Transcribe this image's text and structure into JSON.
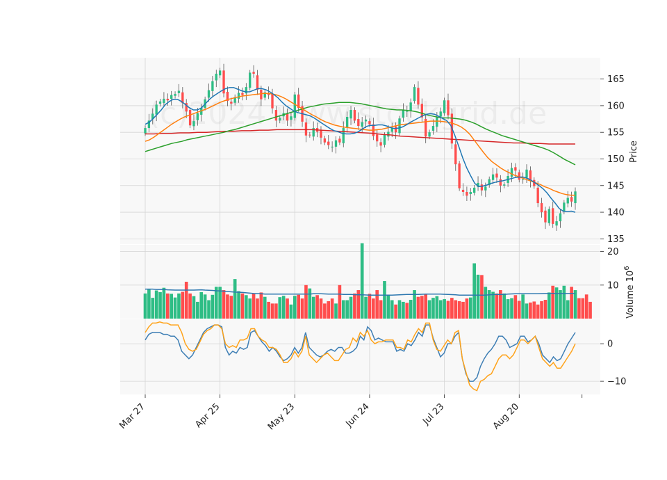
{
  "watermark": "(c)2024 www.stockgrid.de",
  "chart_data": [
    {
      "type": "candlestick",
      "panel": "price",
      "ylabel": "Price",
      "ylim": [
        134,
        169
      ],
      "yticks": [
        135,
        140,
        145,
        150,
        155,
        160,
        165
      ],
      "xlabels": [
        "Mar 27",
        "Apr 25",
        "May 23",
        "Jun 24",
        "Jul 23",
        "Aug 20"
      ],
      "xlabel_index": [
        0,
        20,
        40,
        60,
        80,
        100
      ],
      "up_color": "#2ebd85",
      "down_color": "#ff4d4d",
      "close": [
        155.8,
        157.2,
        158.5,
        160.2,
        160.8,
        161.3,
        161.0,
        162.0,
        162.2,
        162.8,
        160.5,
        158.9,
        156.3,
        157.1,
        158.6,
        159.6,
        161.2,
        162.9,
        164.6,
        166.0,
        166.6,
        162.3,
        160.9,
        160.4,
        161.6,
        162.4,
        162.0,
        163.5,
        166.2,
        166.0,
        163.0,
        161.2,
        162.5,
        162.0,
        159.5,
        157.2,
        157.7,
        158.6,
        157.2,
        158.0,
        162.1,
        159.6,
        157.0,
        154.4,
        154.5,
        155.8,
        155.1,
        154.0,
        153.1,
        152.6,
        152.3,
        153.5,
        153.1,
        155.8,
        157.9,
        159.2,
        157.2,
        156.2,
        156.9,
        157.4,
        156.5,
        154.3,
        153.3,
        152.5,
        154.5,
        155.1,
        155.8,
        155.0,
        157.6,
        159.2,
        159.0,
        160.6,
        163.5,
        160.2,
        157.8,
        154.2,
        155.0,
        156.2,
        157.8,
        158.9,
        161.0,
        158.2,
        152.9,
        149.0,
        144.5,
        143.8,
        143.1,
        143.8,
        144.6,
        145.5,
        144.1,
        144.8,
        146.2,
        147.1,
        146.5,
        145.0,
        145.2,
        146.8,
        148.3,
        147.8,
        146.1,
        146.2,
        148.0,
        145.9,
        144.9,
        141.7,
        140.0,
        138.1,
        140.6,
        137.8,
        138.3,
        139.8,
        141.8,
        142.7,
        142.0,
        143.9
      ],
      "ma_short": [
        156.5,
        156.9,
        157.6,
        158.4,
        159.2,
        160.2,
        160.8,
        161.2,
        161.2,
        160.8,
        160.2,
        159.6,
        159.2,
        159.2,
        159.6,
        160.4,
        161.2,
        161.8,
        162.3,
        162.8,
        163.2,
        163.4,
        163.4,
        163.1,
        162.8,
        162.6,
        162.6,
        162.9,
        163.2,
        163.2,
        163.0,
        162.6,
        162.1,
        161.5,
        160.7,
        160.0,
        159.5,
        159.0,
        158.7,
        158.5,
        158.3,
        158.1,
        157.7,
        157.2,
        156.7,
        156.2,
        155.7,
        155.3,
        155.1,
        154.8,
        154.7,
        154.7,
        154.8,
        155.1,
        155.6,
        156.1,
        156.3,
        156.3,
        156.4,
        156.4,
        156.2,
        155.9,
        155.7,
        155.8,
        156.0,
        156.4,
        156.9,
        157.3,
        157.7,
        158.1,
        158.4,
        158.5,
        158.4,
        158.0,
        157.6,
        157.2,
        156.3,
        154.5,
        152.4,
        150.2,
        148.3,
        146.8,
        145.4,
        144.8,
        144.9,
        145.1,
        145.4,
        145.6,
        145.8,
        145.9,
        146.1,
        146.3,
        146.5,
        146.6,
        146.6,
        146.4,
        146.0,
        145.5,
        145.0,
        144.4,
        143.6,
        142.6,
        141.7,
        140.7,
        140.2,
        140.1,
        140.2,
        140.0
      ],
      "ma_mid": [
        153.3,
        153.6,
        154.1,
        154.7,
        155.3,
        155.9,
        156.5,
        157.0,
        157.5,
        157.9,
        158.2,
        158.5,
        158.8,
        159.1,
        159.4,
        159.8,
        160.2,
        160.6,
        160.9,
        161.2,
        161.4,
        161.6,
        161.8,
        161.9,
        162.0,
        162.1,
        162.2,
        162.3,
        162.3,
        162.2,
        162.0,
        161.7,
        161.3,
        160.8,
        160.3,
        159.8,
        159.3,
        158.8,
        158.3,
        157.9,
        157.4,
        157.0,
        156.7,
        156.4,
        156.2,
        156.0,
        155.9,
        155.8,
        155.7,
        155.6,
        155.5,
        155.4,
        155.4,
        155.5,
        155.6,
        155.8,
        156.0,
        156.2,
        156.4,
        156.5,
        156.6,
        156.7,
        156.8,
        156.9,
        157.0,
        157.1,
        157.1,
        157.1,
        157.0,
        156.9,
        156.7,
        156.4,
        156.0,
        155.4,
        154.6,
        153.5,
        152.4,
        151.3,
        150.3,
        149.5,
        148.9,
        148.3,
        147.8,
        147.4,
        147.0,
        146.7,
        146.4,
        146.1,
        145.8,
        145.5,
        145.2,
        144.8,
        144.5,
        144.1,
        143.8,
        143.5,
        143.3,
        143.2,
        143.2
      ],
      "ma_long": [
        151.4,
        151.7,
        152.0,
        152.3,
        152.6,
        152.9,
        153.1,
        153.3,
        153.6,
        153.8,
        154.0,
        154.2,
        154.4,
        154.6,
        154.8,
        155.0,
        155.3,
        155.5,
        155.8,
        156.1,
        156.4,
        156.7,
        157.0,
        157.3,
        157.6,
        157.9,
        158.2,
        158.5,
        158.8,
        159.1,
        159.4,
        159.7,
        159.9,
        160.1,
        160.3,
        160.4,
        160.5,
        160.6,
        160.6,
        160.6,
        160.5,
        160.4,
        160.2,
        160.0,
        159.8,
        159.6,
        159.4,
        159.3,
        159.2,
        159.2,
        159.1,
        159.0,
        158.8,
        158.5,
        158.2,
        158.0,
        157.8,
        157.7,
        157.7,
        157.6,
        157.5,
        157.3,
        157.0,
        156.6,
        156.1,
        155.6,
        155.2,
        154.8,
        154.4,
        154.1,
        153.8,
        153.5,
        153.2,
        152.9,
        152.6,
        152.3,
        152.0,
        151.6,
        151.1,
        150.5,
        149.9,
        149.4,
        148.9
      ],
      "ma_long_start": 0,
      "ma_200": [
        154.7,
        154.7,
        154.8,
        154.8,
        154.9,
        154.9,
        155.0,
        155.0,
        155.1,
        155.2,
        155.2,
        155.3,
        155.3,
        155.4,
        155.4,
        155.5,
        155.5,
        155.5,
        155.5,
        155.5,
        155.4,
        155.3,
        155.2,
        155.1,
        155.0,
        154.9,
        154.8,
        154.6,
        154.5,
        154.3,
        154.2,
        154.1,
        154.0,
        153.9,
        153.8,
        153.7,
        153.6,
        153.5,
        153.4,
        153.3,
        153.2,
        153.1,
        153.0,
        153.0,
        152.9,
        152.9,
        152.8,
        152.8,
        152.8,
        152.8
      ]
    },
    {
      "type": "bar",
      "panel": "volume",
      "ylabel": "Volume  10^6",
      "ylabel_exp": "6",
      "ylim": [
        0,
        22
      ],
      "yticks": [
        10,
        20
      ],
      "values": [
        7.5,
        8.7,
        6.2,
        8.4,
        7.9,
        9.2,
        7.5,
        7.4,
        6.3,
        7.5,
        8.0,
        11.0,
        7.5,
        6.7,
        5.0,
        7.9,
        7.2,
        5.5,
        7.1,
        9.5,
        9.5,
        8.5,
        7.2,
        6.8,
        11.8,
        8.2,
        7.5,
        7.0,
        6.0,
        7.4,
        6.0,
        7.8,
        6.5,
        5.0,
        4.5,
        4.5,
        6.4,
        6.8,
        6.0,
        4.2,
        6.8,
        7.1,
        6.0,
        10.0,
        9.0,
        6.5,
        7.0,
        6.0,
        4.5,
        5.2,
        6.0,
        4.5,
        10.0,
        5.5,
        5.5,
        6.5,
        7.5,
        8.5,
        22.5,
        6.5,
        7.4,
        6.0,
        8.5,
        5.5,
        11.2,
        7.0,
        5.5,
        4.2,
        5.5,
        5.0,
        4.7,
        5.6,
        8.5,
        6.5,
        6.8,
        7.2,
        5.5,
        6.2,
        6.7,
        5.5,
        5.8,
        5.3,
        6.2,
        5.5,
        5.2,
        5.0,
        6.0,
        6.3,
        16.5,
        13.1,
        13.0,
        9.5,
        8.5,
        8.0,
        7.5,
        8.5,
        7.5,
        5.8,
        6.1,
        7.0,
        5.3,
        7.2,
        4.5,
        4.8,
        5.1,
        4.2,
        5.2,
        5.6,
        7.8,
        9.8,
        9.3,
        8.5,
        9.8,
        5.5,
        9.5,
        8.5,
        6.1,
        6.1,
        7.2,
        5.0
      ],
      "up_color": "#2ebd85",
      "down_color": "#ff4d4d",
      "avg": [
        8.8,
        8.8,
        8.7,
        8.7,
        8.6,
        8.5,
        8.5,
        8.5,
        8.5,
        8.6,
        8.5,
        8.4,
        8.3,
        8.2,
        8.0,
        7.9,
        7.8,
        7.6,
        7.5,
        7.4,
        7.3,
        7.3,
        7.3,
        7.3,
        7.3,
        7.3,
        7.3,
        7.3,
        7.4,
        7.4,
        7.3,
        7.3,
        7.3,
        7.2,
        7.2,
        7.1,
        7.1,
        7.0,
        7.0,
        7.0,
        7.0,
        7.0,
        7.1,
        7.2,
        7.2,
        7.2,
        7.3,
        7.3,
        7.3,
        7.3,
        7.2,
        7.1,
        7.0,
        7.0,
        7.0,
        7.0,
        7.0,
        7.1,
        7.2,
        7.2,
        7.3,
        7.4,
        7.4,
        7.4,
        7.4,
        7.4,
        7.5,
        7.5,
        7.5,
        7.5,
        7.5,
        7.5
      ]
    },
    {
      "type": "line",
      "panel": "oscillator",
      "ylim": [
        -13.5,
        6.5
      ],
      "yticks": [
        -10,
        0
      ],
      "ytick_labels": [
        "−10",
        "0"
      ],
      "series": [
        {
          "color": "#3f7fb5",
          "values": [
            1,
            2.5,
            3,
            3,
            3,
            2.5,
            2.5,
            2,
            2,
            1,
            -2,
            -3,
            -4,
            -3,
            -1,
            1,
            3,
            4,
            4.5,
            5,
            5,
            4.5,
            -1,
            -3,
            -2,
            -2.5,
            -1,
            -1.5,
            -1,
            3,
            3.5,
            2,
            0.5,
            -0.5,
            -2,
            -1,
            -2,
            -3.5,
            -4.5,
            -4,
            -3,
            -1,
            -2.5,
            -1,
            3,
            -1,
            -2,
            -3,
            -3.5,
            -3,
            -2,
            -1.5,
            -2,
            -1,
            -1,
            -2.5,
            -2.5,
            -2,
            -1,
            2,
            1,
            4.5,
            3.5,
            1,
            1.5,
            1,
            0.5,
            0.5,
            0.5,
            -2,
            -1.5,
            -2,
            0,
            -0.5,
            1,
            3,
            2,
            5,
            5,
            1.5,
            -1,
            -3.5,
            -2.5,
            0,
            0,
            2,
            3,
            -4,
            -8,
            -10,
            -10,
            -9,
            -6,
            -4,
            -2.5,
            -1.5,
            0,
            2,
            2,
            1,
            -1,
            -0.5,
            0,
            2,
            2,
            0.5,
            1,
            2,
            0,
            -3,
            -4,
            -5,
            -3.5,
            -4.5,
            -4,
            -2,
            0,
            1.5,
            3
          ]
        },
        {
          "color": "#ffa31a",
          "values": [
            3,
            4.5,
            5.5,
            5.5,
            5.8,
            5.5,
            5.5,
            5,
            5,
            5,
            3,
            0,
            -1.5,
            -2,
            -1.5,
            0.5,
            2.5,
            3.5,
            4,
            5,
            5,
            4,
            0,
            -1,
            -0.5,
            -1,
            1,
            1,
            1.5,
            4,
            4,
            2,
            1,
            0.5,
            -1,
            -1,
            -1.5,
            -3,
            -5,
            -5,
            -4,
            -2,
            -3.5,
            -2,
            2,
            -3,
            -4,
            -5,
            -4,
            -3,
            -2.5,
            -3.5,
            -4.5,
            -4.5,
            -3,
            -1.5,
            -1,
            1.5,
            0.5,
            3,
            2,
            3.5,
            1,
            0,
            0.5,
            0.5,
            1,
            1,
            1,
            -1,
            -1,
            -1.5,
            1,
            0.5,
            2.5,
            4,
            3,
            5.5,
            5.5,
            1,
            -1.5,
            -2,
            -0.5,
            1,
            0,
            3,
            3.5,
            -4,
            -7.5,
            -11,
            -12,
            -12.5,
            -10,
            -9.5,
            -8.5,
            -8,
            -6,
            -4,
            -3,
            -3,
            -4,
            -3,
            -1,
            1,
            1,
            0,
            1,
            2,
            -1,
            -4,
            -5,
            -6,
            -5,
            -6.5,
            -6.5,
            -5,
            -3.5,
            -2,
            0
          ]
        }
      ]
    }
  ]
}
